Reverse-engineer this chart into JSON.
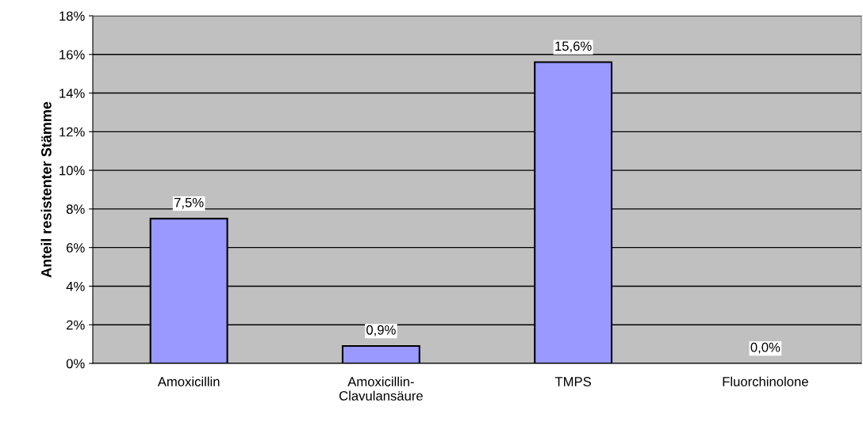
{
  "chart_data": {
    "type": "bar",
    "ylabel": "Anteil resistenter Stämme",
    "categories": [
      "Amoxicillin",
      "Amoxicillin-\nClavulansäure",
      "TMPS",
      "Fluorchinolone"
    ],
    "values": [
      7.5,
      0.9,
      15.6,
      0.0
    ],
    "color": "#9999ff",
    "value_labels": [
      "7,5%",
      "0,9%",
      "15,6%",
      "0,0%"
    ],
    "ylim": [
      0,
      18
    ],
    "yticks": [
      {
        "value": 0,
        "label": "0%"
      },
      {
        "value": 2,
        "label": "2%"
      },
      {
        "value": 4,
        "label": "4%"
      },
      {
        "value": 6,
        "label": "6%"
      },
      {
        "value": 8,
        "label": "8%"
      },
      {
        "value": 10,
        "label": "10%"
      },
      {
        "value": 12,
        "label": "12%"
      },
      {
        "value": 14,
        "label": "14%"
      },
      {
        "value": 16,
        "label": "16%"
      },
      {
        "value": 18,
        "label": "18%"
      }
    ],
    "grid": "y",
    "legend": false
  }
}
